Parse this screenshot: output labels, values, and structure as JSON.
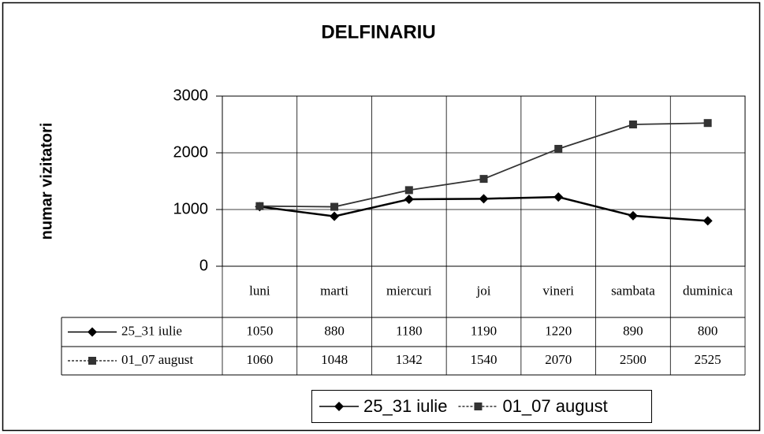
{
  "chart_data": {
    "type": "line",
    "title": "DELFINARIU",
    "y_label": "numar vizitatori",
    "categories": [
      "luni",
      "marti",
      "miercuri",
      "joi",
      "vineri",
      "sambata",
      "duminica"
    ],
    "series": [
      {
        "name": "25_31 iulie",
        "color": "#000000",
        "marker": "diamond",
        "values": [
          1050,
          880,
          1180,
          1190,
          1220,
          890,
          800
        ]
      },
      {
        "name": "01_07 august",
        "color": "#333333",
        "marker": "square",
        "values": [
          1060,
          1048,
          1342,
          1540,
          2070,
          2500,
          2525
        ]
      }
    ],
    "ylim": [
      0,
      3000
    ],
    "yticks": [
      0,
      1000,
      2000,
      3000
    ],
    "grid": true,
    "data_table": true,
    "legend": "bottom"
  }
}
